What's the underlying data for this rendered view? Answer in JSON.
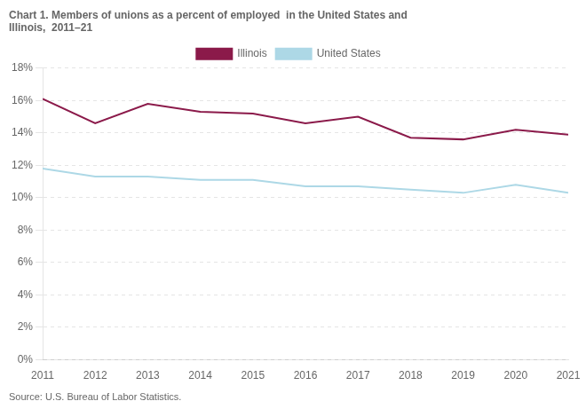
{
  "chart_data": {
    "type": "line",
    "title": "Chart 1. Members of unions as a percent of employed  in the United States and\nIllinois,  2011–21",
    "annotations": [
      "Source: U.S. Bureau of Labor Statistics."
    ],
    "x": [
      2011,
      2012,
      2013,
      2014,
      2015,
      2016,
      2017,
      2018,
      2019,
      2020,
      2021
    ],
    "series": [
      {
        "name": "Illinois",
        "color": "#8B1A4A",
        "values": [
          16.1,
          14.6,
          15.8,
          15.3,
          15.2,
          14.6,
          15.0,
          13.7,
          13.6,
          14.2,
          13.9
        ]
      },
      {
        "name": "United States",
        "color": "#ADD8E6",
        "values": [
          11.8,
          11.3,
          11.3,
          11.1,
          11.1,
          10.7,
          10.7,
          10.5,
          10.3,
          10.8,
          10.3
        ]
      }
    ],
    "xlim": [
      2011,
      2021
    ],
    "xticks": [
      2011,
      2012,
      2013,
      2014,
      2015,
      2016,
      2017,
      2018,
      2019,
      2020,
      2021
    ],
    "ylim": [
      0,
      18
    ],
    "yticks": [
      {
        "value": 0,
        "label": "0%"
      },
      {
        "value": 2,
        "label": "2%"
      },
      {
        "value": 4,
        "label": "4%"
      },
      {
        "value": 6,
        "label": "6%"
      },
      {
        "value": 8,
        "label": "8%"
      },
      {
        "value": 10,
        "label": "10%"
      },
      {
        "value": 12,
        "label": "12%"
      },
      {
        "value": 14,
        "label": "14%"
      },
      {
        "value": 16,
        "label": "16%"
      },
      {
        "value": 18,
        "label": "18%"
      }
    ],
    "grid": true,
    "legend": "top"
  }
}
